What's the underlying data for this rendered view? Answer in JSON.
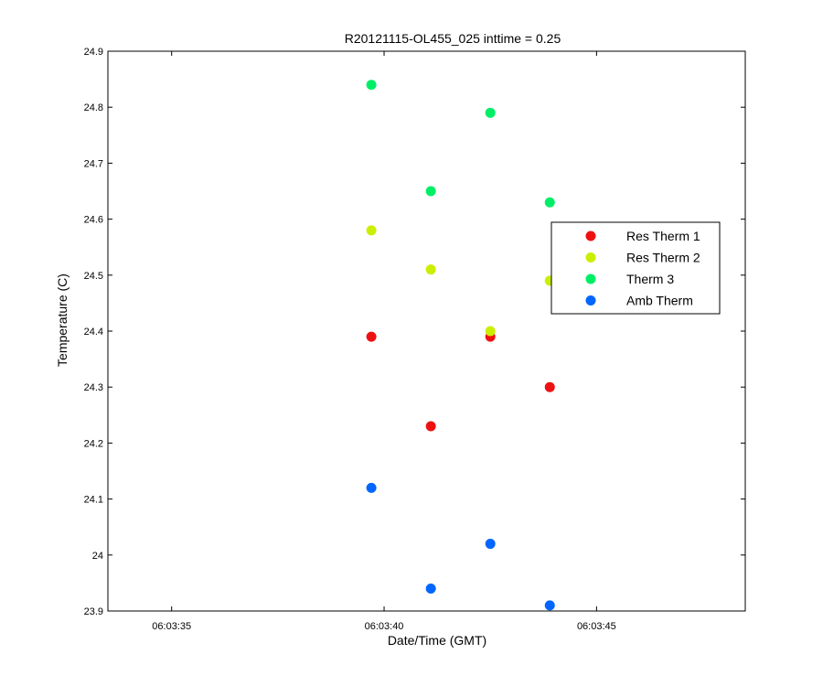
{
  "chart_data": {
    "type": "scatter",
    "title": "R20121115-OL455_025 inttime = 0.25",
    "xlabel": "Date/Time (GMT)",
    "ylabel": "Temperature (C)",
    "xlim": [
      "06:03:33.5",
      "06:03:48.5"
    ],
    "ylim": [
      23.9,
      24.9
    ],
    "x_ticks": [
      "06:03:35",
      "06:03:40",
      "06:03:45"
    ],
    "y_ticks": [
      "23.9",
      "24",
      "24.1",
      "24.2",
      "24.3",
      "24.4",
      "24.5",
      "24.6",
      "24.7",
      "24.8",
      "24.9"
    ],
    "grid": false,
    "legend_position": "right",
    "x": [
      "06:03:39.7",
      "06:03:41.1",
      "06:03:42.5",
      "06:03:43.9"
    ],
    "series": [
      {
        "name": "Res Therm 1",
        "color": "#ee1111",
        "values": [
          24.39,
          24.23,
          24.39,
          24.3
        ]
      },
      {
        "name": "Res Therm 2",
        "color": "#ccee00",
        "values": [
          24.58,
          24.51,
          24.4,
          24.49
        ]
      },
      {
        "name": "Therm 3",
        "color": "#00ee66",
        "values": [
          24.84,
          24.65,
          24.79,
          24.63
        ]
      },
      {
        "name": "Amb Therm",
        "color": "#0066ff",
        "values": [
          24.12,
          23.94,
          24.02,
          23.91
        ]
      }
    ]
  }
}
